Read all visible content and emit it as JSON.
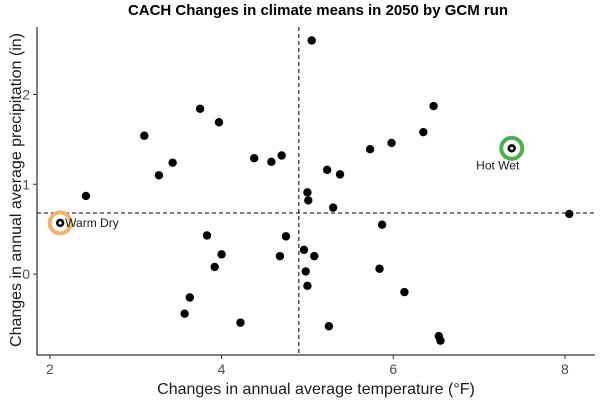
{
  "chart_data": {
    "type": "scatter",
    "title": "CACH Changes in climate means in 2050 by GCM run",
    "xlabel": "Changes in annual average temperature (°F)",
    "ylabel": "Changes in annual average precipitation (in)",
    "xlim": [
      1.85,
      8.35
    ],
    "ylim": [
      -0.9,
      2.75
    ],
    "xticks": [
      2,
      4,
      6,
      8
    ],
    "yticks": [
      0,
      1,
      2
    ],
    "grid": false,
    "ref_lines": {
      "x": 4.9,
      "y": 0.68
    },
    "points": [
      {
        "x": 5.05,
        "y": 2.6
      },
      {
        "x": 3.75,
        "y": 1.84
      },
      {
        "x": 3.97,
        "y": 1.69
      },
      {
        "x": 3.1,
        "y": 1.54
      },
      {
        "x": 6.47,
        "y": 1.87
      },
      {
        "x": 6.35,
        "y": 1.58
      },
      {
        "x": 5.98,
        "y": 1.46
      },
      {
        "x": 5.73,
        "y": 1.39
      },
      {
        "x": 7.38,
        "y": 1.4
      },
      {
        "x": 3.43,
        "y": 1.24
      },
      {
        "x": 4.38,
        "y": 1.29
      },
      {
        "x": 4.58,
        "y": 1.25
      },
      {
        "x": 4.7,
        "y": 1.32
      },
      {
        "x": 5.23,
        "y": 1.16
      },
      {
        "x": 5.38,
        "y": 1.11
      },
      {
        "x": 3.27,
        "y": 1.1
      },
      {
        "x": 2.42,
        "y": 0.87
      },
      {
        "x": 5.0,
        "y": 0.91
      },
      {
        "x": 5.01,
        "y": 0.82
      },
      {
        "x": 5.3,
        "y": 0.74
      },
      {
        "x": 8.05,
        "y": 0.67
      },
      {
        "x": 2.12,
        "y": 0.57
      },
      {
        "x": 5.87,
        "y": 0.55
      },
      {
        "x": 3.83,
        "y": 0.43
      },
      {
        "x": 4.75,
        "y": 0.42
      },
      {
        "x": 4.0,
        "y": 0.22
      },
      {
        "x": 4.68,
        "y": 0.2
      },
      {
        "x": 4.96,
        "y": 0.27
      },
      {
        "x": 5.08,
        "y": 0.2
      },
      {
        "x": 3.92,
        "y": 0.08
      },
      {
        "x": 4.98,
        "y": 0.03
      },
      {
        "x": 5.84,
        "y": 0.06
      },
      {
        "x": 5.0,
        "y": -0.13
      },
      {
        "x": 6.13,
        "y": -0.2
      },
      {
        "x": 3.63,
        "y": -0.26
      },
      {
        "x": 3.57,
        "y": -0.44
      },
      {
        "x": 4.22,
        "y": -0.54
      },
      {
        "x": 5.25,
        "y": -0.58
      },
      {
        "x": 6.53,
        "y": -0.69
      },
      {
        "x": 6.55,
        "y": -0.74
      }
    ],
    "annotations": [
      {
        "label": "Warm Dry",
        "x": 2.12,
        "y": 0.57,
        "ring_color": "#F5B06A",
        "label_pos": "right"
      },
      {
        "label": "Hot Wet",
        "x": 7.38,
        "y": 1.4,
        "ring_color": "#4DAF4A",
        "label_pos": "below-left"
      }
    ]
  }
}
